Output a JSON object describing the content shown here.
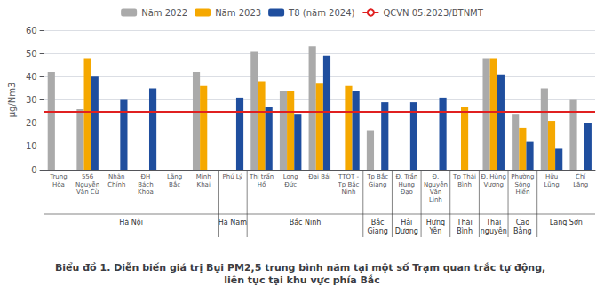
{
  "chart_data": {
    "type": "bar",
    "title": "Biểu đồ 1. Diễn biến giá trị Bụi PM2,5 trung bình năm tại một số Trạm quan trắc tự động, liên tục tại khu vực phía Bắc",
    "y_label": "µg/Nm3",
    "categories": [
      "Trung\nHòa",
      "556\nNguyễn\nVăn Cừ",
      "Nhân\nChính",
      "ĐH\nBách\nKhoa",
      "Lãng\nBắc",
      "Minh\nKhai",
      "Phú Lý",
      "Thị trấn\nHồ",
      "Long\nĐức",
      "Đại Bái",
      "TTQT -\nTp Bắc\nNinh",
      "Tp Bắc\nGiang",
      "Đ. Trần\nHung\nĐạo",
      "Đ.\nNguyễn\nVăn\nLinh",
      "Tp Thái\nBình",
      "Đ. Hùng\nVương",
      "Phường\nSông\nHiến",
      "Hữu\nLũng",
      "Chí\nLăng"
    ],
    "groups": [
      {
        "label": "Hà Nội",
        "size": 6
      },
      {
        "label": "Hà Nam",
        "size": 1
      },
      {
        "label": "Bắc Ninh",
        "size": 4
      },
      {
        "label": "Bắc\nGiang",
        "size": 1
      },
      {
        "label": "Hải\nDương",
        "size": 1
      },
      {
        "label": "Hưng\nYên",
        "size": 1
      },
      {
        "label": "Thái\nBình",
        "size": 1
      },
      {
        "label": "Thái\nnguyên",
        "size": 1
      },
      {
        "label": "Cao\nBằng",
        "size": 1
      },
      {
        "label": "Lạng Sơn",
        "size": 2
      }
    ],
    "series": [
      {
        "name": "Năm 2022",
        "color": "#aaaaaa",
        "values": [
          42,
          26,
          null,
          null,
          null,
          42,
          null,
          51,
          34,
          53,
          null,
          17,
          null,
          null,
          null,
          48,
          24,
          35,
          30
        ]
      },
      {
        "name": "Năm 2023",
        "color": "#f5a800",
        "values": [
          null,
          48,
          null,
          null,
          null,
          36,
          null,
          38,
          34,
          37,
          36,
          null,
          null,
          null,
          27,
          48,
          18,
          21,
          null
        ]
      },
      {
        "name": "T8 (năm 2024)",
        "color": "#1f4e9e",
        "values": [
          null,
          40,
          30,
          35,
          null,
          null,
          31,
          27,
          24,
          49,
          34,
          29,
          29,
          31,
          null,
          41,
          12,
          9,
          20
        ]
      },
      {
        "name": "QCVN 05:2023/BTNMT",
        "type": "hline",
        "color": "#e02020",
        "value": 25
      }
    ],
    "ylim": [
      0,
      60
    ],
    "yticks": [
      0,
      10,
      20,
      30,
      40,
      50,
      60
    ],
    "grid": true,
    "legend": "top"
  }
}
